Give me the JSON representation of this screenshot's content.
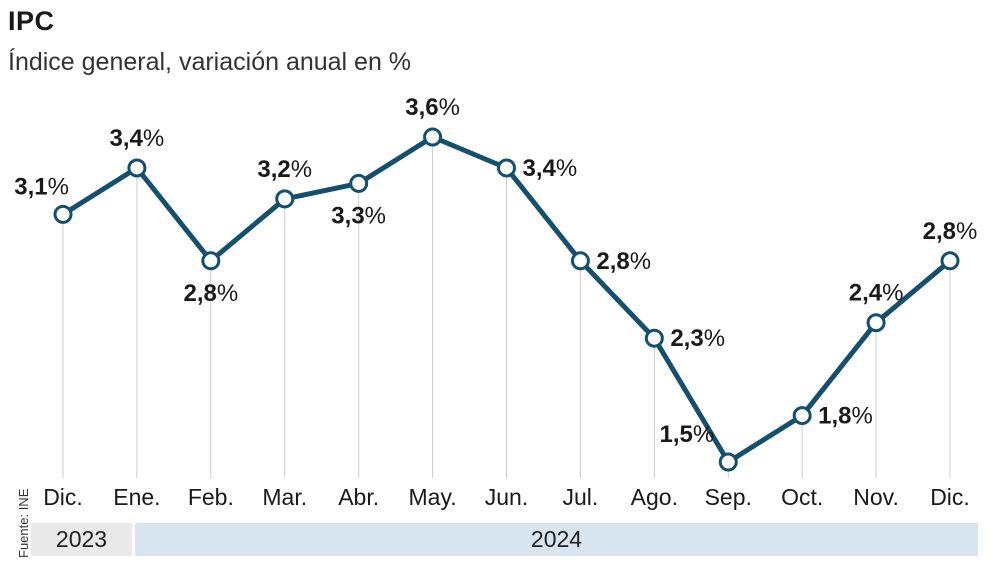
{
  "header": {
    "title": "IPC",
    "subtitle": "Índice general, variación anual en %"
  },
  "source": "Fuente: INE",
  "colors": {
    "line": "#14506e",
    "marker_fill": "#ffffff",
    "gridline": "#cccccc",
    "band_2023": "#e9e9e9",
    "band_2024": "#d8e4ee"
  },
  "periods": [
    {
      "label": "2023"
    },
    {
      "label": "2024"
    }
  ],
  "chart_data": {
    "type": "line",
    "title": "IPC",
    "subtitle": "Índice general, variación anual en %",
    "categories": [
      "Dic.",
      "Ene.",
      "Feb.",
      "Mar.",
      "Abr.",
      "May.",
      "Jun.",
      "Jul.",
      "Ago.",
      "Sep.",
      "Oct.",
      "Nov.",
      "Dic."
    ],
    "series": [
      {
        "values": [
          3.1,
          3.4,
          2.8,
          3.2,
          3.3,
          3.6,
          3.4,
          2.8,
          2.3,
          1.5,
          1.8,
          2.4,
          2.8
        ],
        "labels": [
          "3,1",
          "3,4",
          "2,8",
          "3,2",
          "3,3",
          "3,6",
          "3,4",
          "2,8",
          "2,3",
          "1,5",
          "1,8",
          "2,4",
          "2,8"
        ]
      }
    ],
    "label_positions": [
      "left",
      "above",
      "below",
      "above",
      "below",
      "above",
      "right",
      "right",
      "right",
      "left",
      "right",
      "above",
      "above"
    ],
    "value_suffix": "%",
    "ylim": [
      1.5,
      3.6
    ],
    "grid": "vertical",
    "xlabel": "",
    "ylabel": ""
  }
}
